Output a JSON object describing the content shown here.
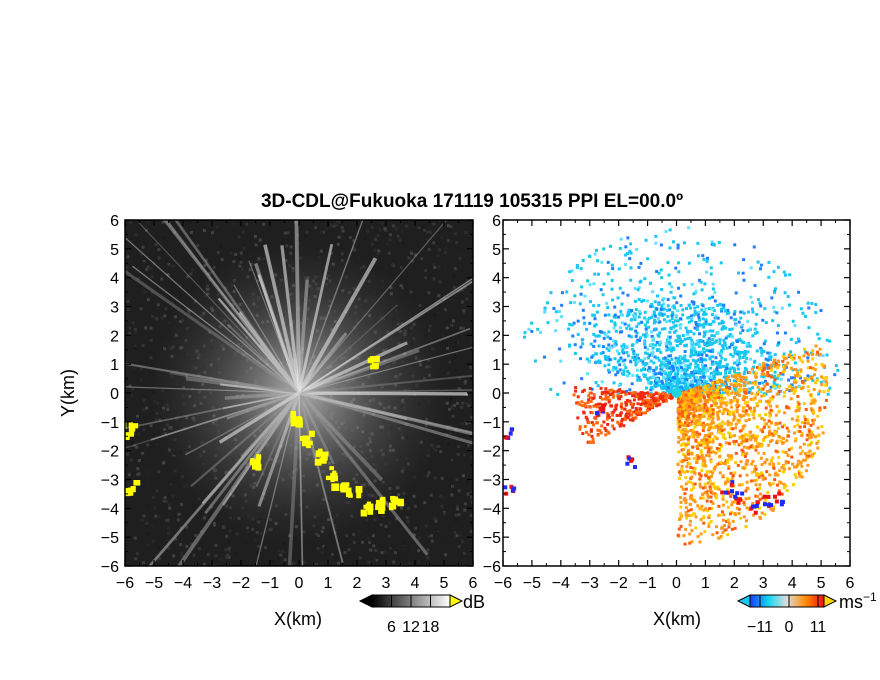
{
  "title": "3D-CDL@Fukuoka 171119 105315 PPI EL=00.0º",
  "chart_data": [
    {
      "type": "heatmap",
      "panel": "left",
      "xlabel": "X(km)",
      "ylabel": "Y(km)",
      "xlim": [
        -6,
        6
      ],
      "ylim": [
        -6,
        6
      ],
      "xticks": [
        -6,
        -5,
        -4,
        -3,
        -2,
        -1,
        0,
        1,
        2,
        3,
        4,
        5,
        6
      ],
      "yticks": [
        -6,
        -5,
        -4,
        -3,
        -2,
        -1,
        0,
        1,
        2,
        3,
        4,
        5,
        6
      ],
      "colorbar": {
        "unit": "dB",
        "ticks": [
          6,
          12,
          18
        ],
        "colormap": "grayscale",
        "flag_color": "#ffff00"
      }
    },
    {
      "type": "heatmap",
      "panel": "right",
      "xlabel": "X(km)",
      "xlim": [
        -6,
        6
      ],
      "ylim": [
        -6,
        6
      ],
      "xticks": [
        -6,
        -5,
        -4,
        -3,
        -2,
        -1,
        0,
        1,
        2,
        3,
        4,
        5,
        6
      ],
      "yticks": [
        -6,
        -5,
        -4,
        -3,
        -2,
        -1,
        0,
        1,
        2,
        3,
        4,
        5,
        6
      ],
      "colorbar": {
        "unit": "ms",
        "unit_exp": "−1",
        "ticks": [
          -11,
          0,
          11
        ],
        "colormap": "blue-cyan-orange-red"
      }
    }
  ]
}
